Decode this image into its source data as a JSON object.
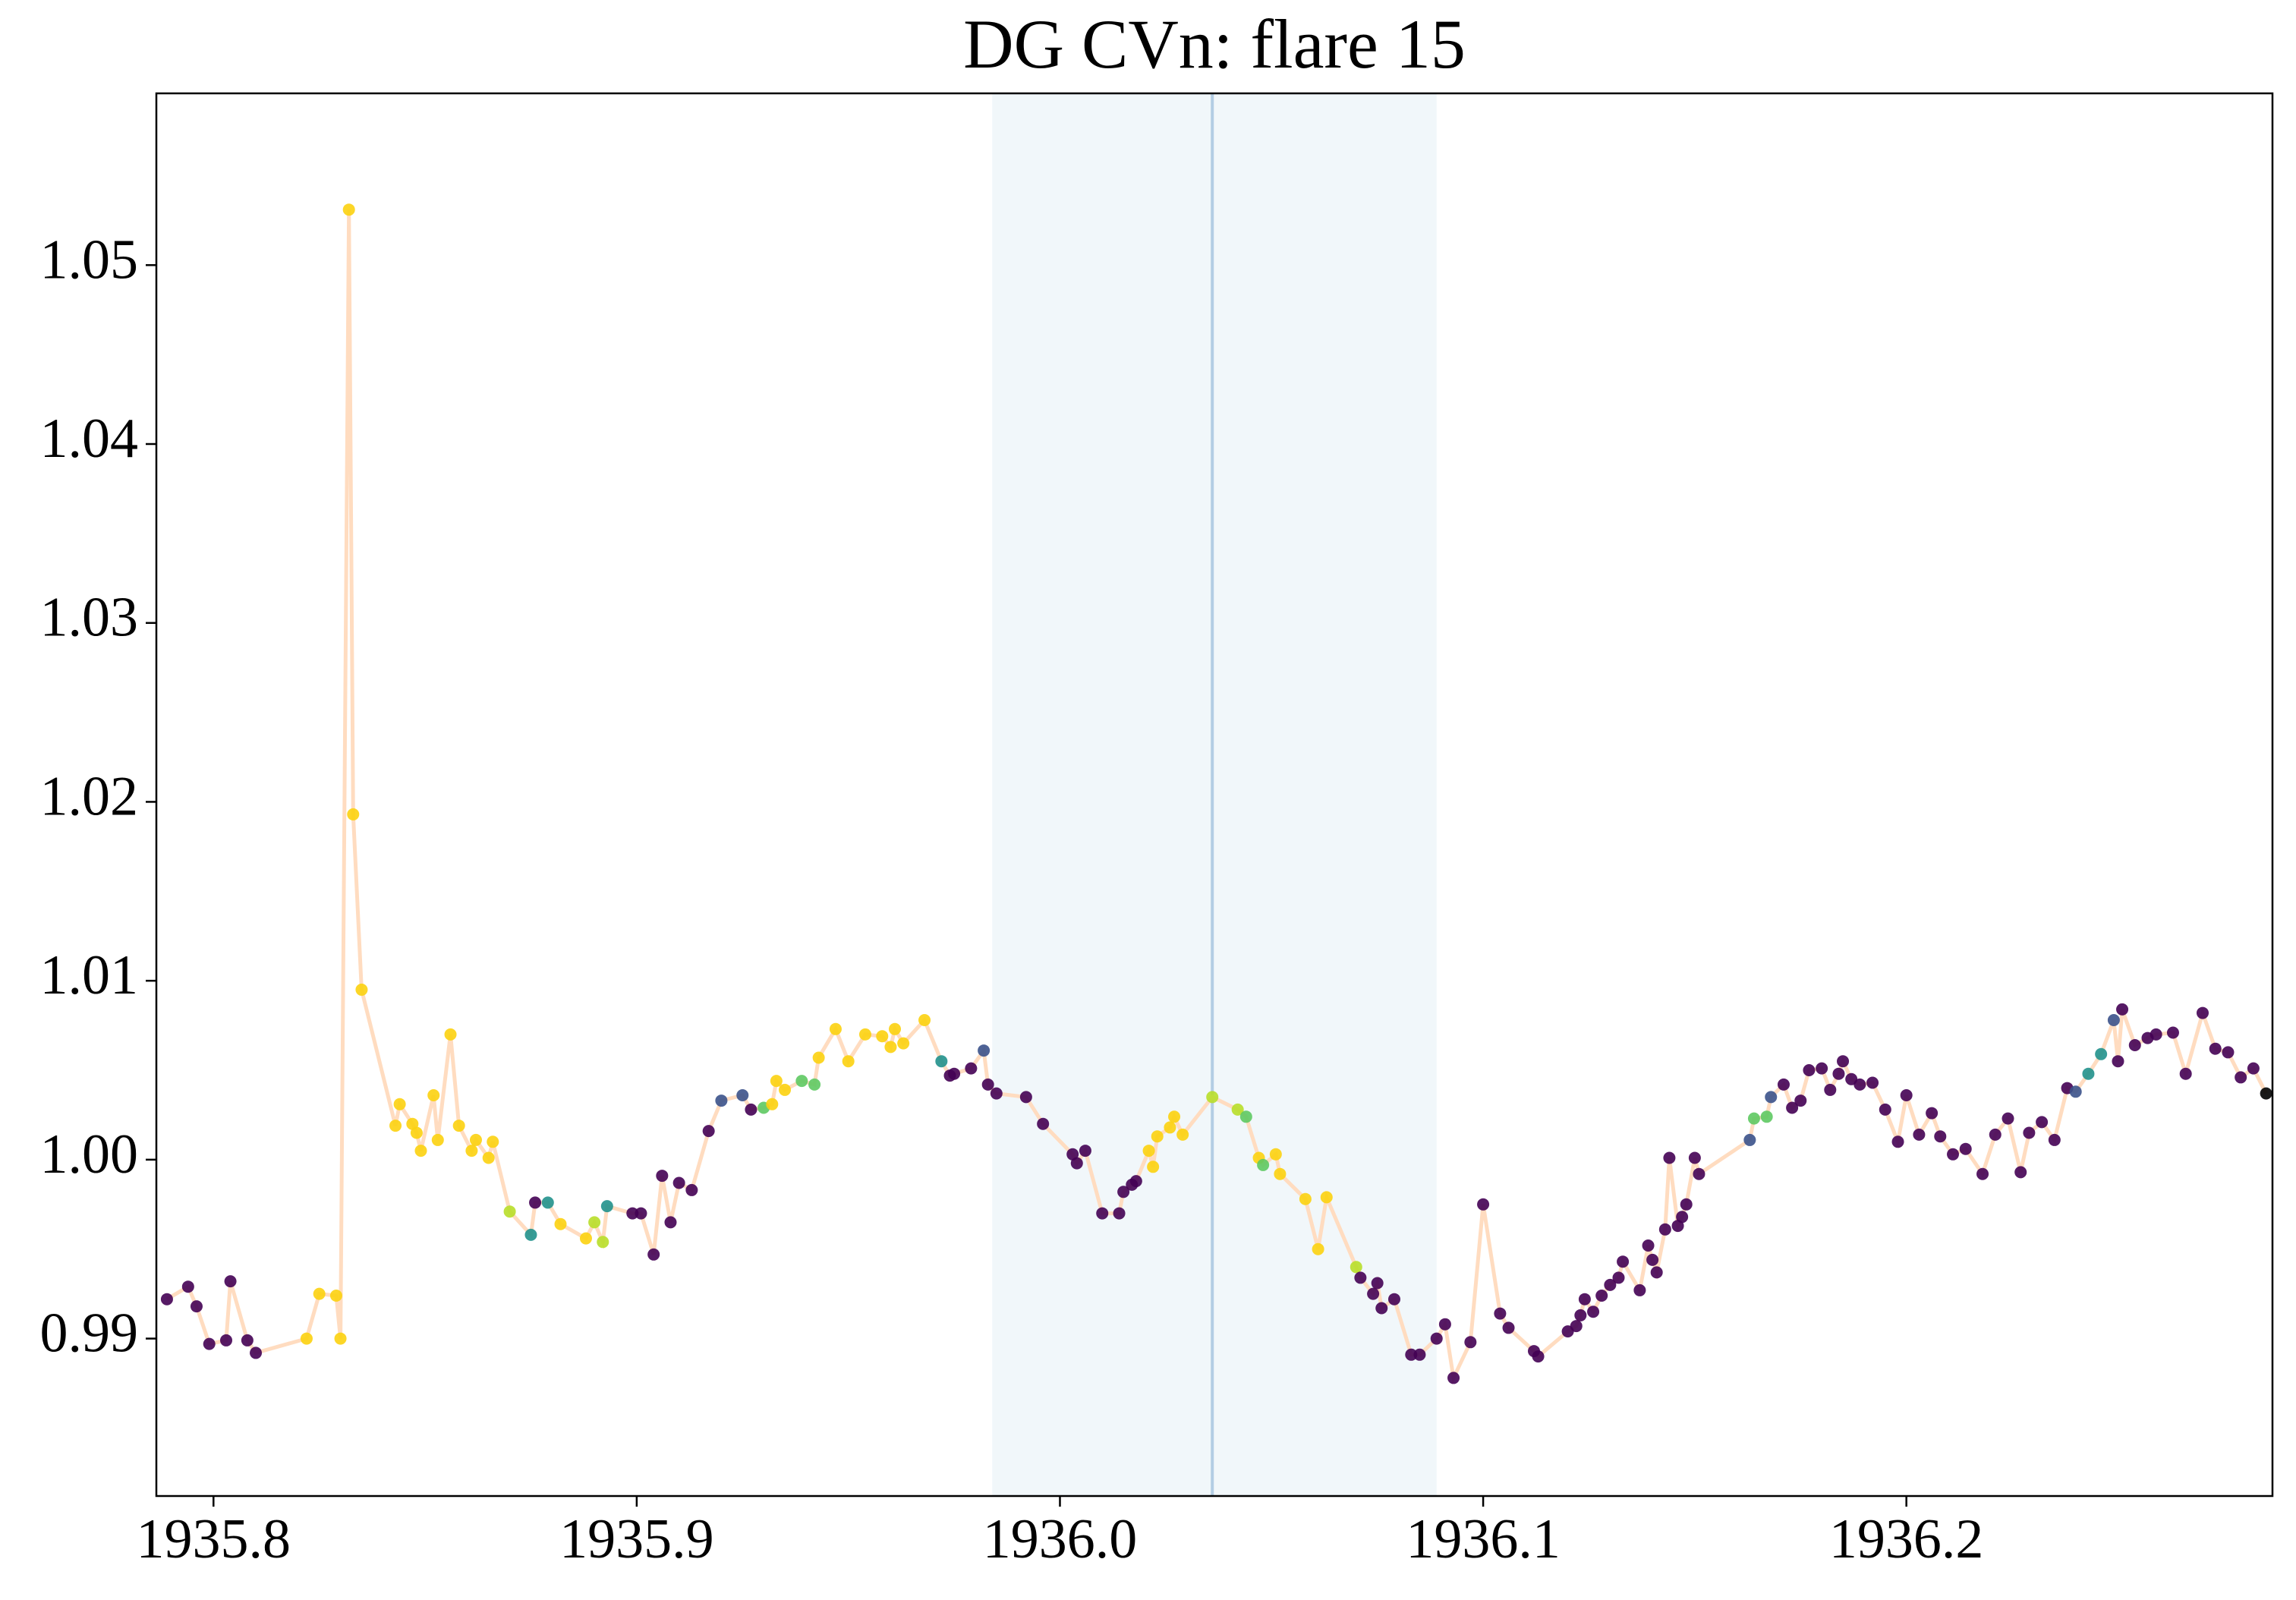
{
  "chart_data": {
    "type": "scatter",
    "title": "DG CVn: flare 15",
    "x": [
      1935.789,
      1935.794,
      1935.796,
      1935.799,
      1935.803,
      1935.804,
      1935.808,
      1935.81,
      1935.822,
      1935.825,
      1935.829,
      1935.83,
      1935.832,
      1935.833,
      1935.835,
      1935.843,
      1935.844,
      1935.847,
      1935.848,
      1935.849,
      1935.852,
      1935.853,
      1935.856,
      1935.858,
      1935.861,
      1935.862,
      1935.865,
      1935.866,
      1935.87,
      1935.875,
      1935.876,
      1935.879,
      1935.882,
      1935.888,
      1935.89,
      1935.892,
      1935.893,
      1935.899,
      1935.901,
      1935.904,
      1935.906,
      1935.908,
      1935.91,
      1935.913,
      1935.917,
      1935.92,
      1935.925,
      1935.927,
      1935.93,
      1935.932,
      1935.933,
      1935.935,
      1935.939,
      1935.942,
      1935.943,
      1935.947,
      1935.95,
      1935.954,
      1935.958,
      1935.96,
      1935.961,
      1935.963,
      1935.968,
      1935.972,
      1935.974,
      1935.975,
      1935.979,
      1935.982,
      1935.983,
      1935.985,
      1935.992,
      1935.996,
      1936.003,
      1936.004,
      1936.006,
      1936.01,
      1936.014,
      1936.015,
      1936.017,
      1936.018,
      1936.021,
      1936.022,
      1936.023,
      1936.026,
      1936.027,
      1936.029,
      1936.036,
      1936.042,
      1936.044,
      1936.047,
      1936.048,
      1936.051,
      1936.052,
      1936.058,
      1936.061,
      1936.063,
      1936.07,
      1936.071,
      1936.074,
      1936.075,
      1936.076,
      1936.079,
      1936.083,
      1936.085,
      1936.089,
      1936.091,
      1936.093,
      1936.097,
      1936.1,
      1936.104,
      1936.106,
      1936.112,
      1936.113,
      1936.12,
      1936.122,
      1936.123,
      1936.124,
      1936.126,
      1936.128,
      1936.13,
      1936.132,
      1936.133,
      1936.137,
      1936.139,
      1936.14,
      1936.141,
      1936.143,
      1936.144,
      1936.146,
      1936.147,
      1936.148,
      1936.15,
      1936.151,
      1936.163,
      1936.164,
      1936.167,
      1936.168,
      1936.171,
      1936.173,
      1936.175,
      1936.177,
      1936.18,
      1936.182,
      1936.184,
      1936.185,
      1936.187,
      1936.189,
      1936.192,
      1936.195,
      1936.198,
      1936.2,
      1936.203,
      1936.206,
      1936.208,
      1936.211,
      1936.214,
      1936.218,
      1936.221,
      1936.224,
      1936.227,
      1936.229,
      1936.232,
      1936.235,
      1936.238,
      1936.24,
      1936.243,
      1936.246,
      1936.249,
      1936.25,
      1936.251,
      1936.254,
      1936.257,
      1936.259,
      1936.263,
      1936.266,
      1936.27,
      1936.273,
      1936.276,
      1936.279,
      1936.282,
      1936.285
    ],
    "values": [
      0.9922,
      0.9929,
      0.9918,
      0.9897,
      0.9899,
      0.9932,
      0.9899,
      0.9892,
      0.99,
      0.9925,
      0.9924,
      0.99,
      1.0531,
      1.0193,
      1.0095,
      1.0019,
      1.0031,
      1.002,
      1.0015,
      1.0005,
      1.0036,
      1.0011,
      1.007,
      1.0019,
      1.0005,
      1.0011,
      1.0001,
      1.001,
      0.9971,
      0.9958,
      0.9976,
      0.9976,
      0.9964,
      0.9956,
      0.9965,
      0.9954,
      0.9974,
      0.997,
      0.997,
      0.9947,
      0.9991,
      0.9965,
      0.9987,
      0.9983,
      1.0016,
      1.0033,
      1.0036,
      1.0028,
      1.0029,
      1.0031,
      1.0044,
      1.0039,
      1.0044,
      1.0042,
      1.0057,
      1.0073,
      1.0055,
      1.007,
      1.0069,
      1.0063,
      1.0073,
      1.0065,
      1.0078,
      1.0055,
      1.0047,
      1.0048,
      1.0051,
      1.0061,
      1.0042,
      1.0037,
      1.0035,
      1.002,
      1.0003,
      0.9998,
      1.0005,
      0.997,
      0.997,
      0.9982,
      0.9986,
      0.9988,
      1.0005,
      0.9996,
      1.0013,
      1.0018,
      1.0024,
      1.0014,
      1.0035,
      1.0028,
      1.0024,
      1.0001,
      0.9997,
      1.0003,
      0.9992,
      0.9978,
      0.995,
      0.9979,
      0.994,
      0.9934,
      0.9925,
      0.9931,
      0.9917,
      0.9922,
      0.9891,
      0.9891,
      0.99,
      0.9908,
      0.9878,
      0.9898,
      0.9975,
      0.9914,
      0.9906,
      0.9893,
      0.989,
      0.9904,
      0.9907,
      0.9913,
      0.9922,
      0.9915,
      0.9924,
      0.993,
      0.9934,
      0.9943,
      0.9927,
      0.9952,
      0.9944,
      0.9937,
      0.9961,
      1.0001,
      0.9963,
      0.9968,
      0.9975,
      1.0001,
      0.9992,
      1.0011,
      1.0023,
      1.0024,
      1.0035,
      1.0042,
      1.0029,
      1.0033,
      1.005,
      1.0051,
      1.0039,
      1.0048,
      1.0055,
      1.0045,
      1.0042,
      1.0043,
      1.0028,
      1.001,
      1.0036,
      1.0014,
      1.0026,
      1.0013,
      1.0003,
      1.0006,
      0.9992,
      1.0014,
      1.0023,
      0.9993,
      1.0015,
      1.0021,
      1.0011,
      1.004,
      1.0038,
      1.0048,
      1.0059,
      1.0078,
      1.0055,
      1.0084,
      1.0064,
      1.0068,
      1.007,
      1.0071,
      1.0048,
      1.0082,
      1.0062,
      1.006,
      1.0046,
      1.0051,
      1.0037
    ],
    "colors": [
      "#440154",
      "#440154",
      "#440154",
      "#440154",
      "#440154",
      "#440154",
      "#440154",
      "#440154",
      "#fcd10f",
      "#fcd10f",
      "#fcd10f",
      "#fcd10f",
      "#fcd10f",
      "#fcd10f",
      "#fcd10f",
      "#fcd10f",
      "#fcd10f",
      "#fcd10f",
      "#fcd10f",
      "#fcd10f",
      "#fcd10f",
      "#fcd10f",
      "#fcd10f",
      "#fcd10f",
      "#fcd10f",
      "#fcd10f",
      "#fcd10f",
      "#fcd10f",
      "#b8de29",
      "#21918c",
      "#440154",
      "#21918c",
      "#fcd10f",
      "#fcd10f",
      "#b8de29",
      "#b8de29",
      "#21918c",
      "#440154",
      "#440154",
      "#440154",
      "#440154",
      "#440154",
      "#440154",
      "#440154",
      "#440154",
      "#3b528b",
      "#3b528b",
      "#440154",
      "#5ec962",
      "#fcd10f",
      "#fcd10f",
      "#fcd10f",
      "#5ec962",
      "#5ec962",
      "#fcd10f",
      "#fcd10f",
      "#fcd10f",
      "#fcd10f",
      "#fcd10f",
      "#fcd10f",
      "#fcd10f",
      "#fcd10f",
      "#fcd10f",
      "#21918c",
      "#440154",
      "#440154",
      "#440154",
      "#3b528b",
      "#440154",
      "#440154",
      "#440154",
      "#440154",
      "#440154",
      "#440154",
      "#440154",
      "#440154",
      "#440154",
      "#440154",
      "#440154",
      "#440154",
      "#fcd10f",
      "#fcd10f",
      "#fcd10f",
      "#fcd10f",
      "#fcd10f",
      "#fcd10f",
      "#b8de29",
      "#b8de29",
      "#5ec962",
      "#fcd10f",
      "#5ec962",
      "#fcd10f",
      "#fcd10f",
      "#fcd10f",
      "#fcd10f",
      "#fcd10f",
      "#b8de29",
      "#440154",
      "#440154",
      "#440154",
      "#440154",
      "#440154",
      "#440154",
      "#440154",
      "#440154",
      "#440154",
      "#440154",
      "#440154",
      "#440154",
      "#440154",
      "#440154",
      "#440154",
      "#440154",
      "#440154",
      "#440154",
      "#440154",
      "#440154",
      "#440154",
      "#440154",
      "#440154",
      "#440154",
      "#440154",
      "#440154",
      "#440154",
      "#440154",
      "#440154",
      "#440154",
      "#440154",
      "#440154",
      "#440154",
      "#440154",
      "#440154",
      "#440154",
      "#3b528b",
      "#5ec962",
      "#5ec962",
      "#3b528b",
      "#440154",
      "#440154",
      "#440154",
      "#440154",
      "#440154",
      "#440154",
      "#440154",
      "#440154",
      "#440154",
      "#440154",
      "#440154",
      "#440154",
      "#440154",
      "#440154",
      "#440154",
      "#440154",
      "#440154",
      "#440154",
      "#440154",
      "#440154",
      "#440154",
      "#440154",
      "#440154",
      "#440154",
      "#440154",
      "#440154",
      "#440154",
      "#3b528b",
      "#21918c",
      "#21918c",
      "#3b528b",
      "#440154",
      "#440154",
      "#440154",
      "#440154",
      "#440154",
      "#440154",
      "#440154",
      "#440154",
      "#440154",
      "#440154",
      "#440154",
      "#440154"
    ],
    "line_color": "#ffdcc0",
    "span": [
      1935.984,
      1936.089
    ],
    "span_color": "#f1f7fa",
    "vline": 1936.036,
    "vline_color": "#b3cde4",
    "xlim": [
      1935.7865,
      1936.2865
    ],
    "xticks": [
      1935.8,
      1935.9,
      {
        "value": 1936.0,
        "label": "1936.0"
      },
      1936.1,
      1936.2
    ],
    "ylim": [
      0.9812,
      1.0596
    ],
    "yticks": [
      0.99,
      {
        "value": 1.0,
        "label": "1.00"
      },
      1.01,
      1.02,
      1.03,
      1.04,
      1.05
    ]
  }
}
